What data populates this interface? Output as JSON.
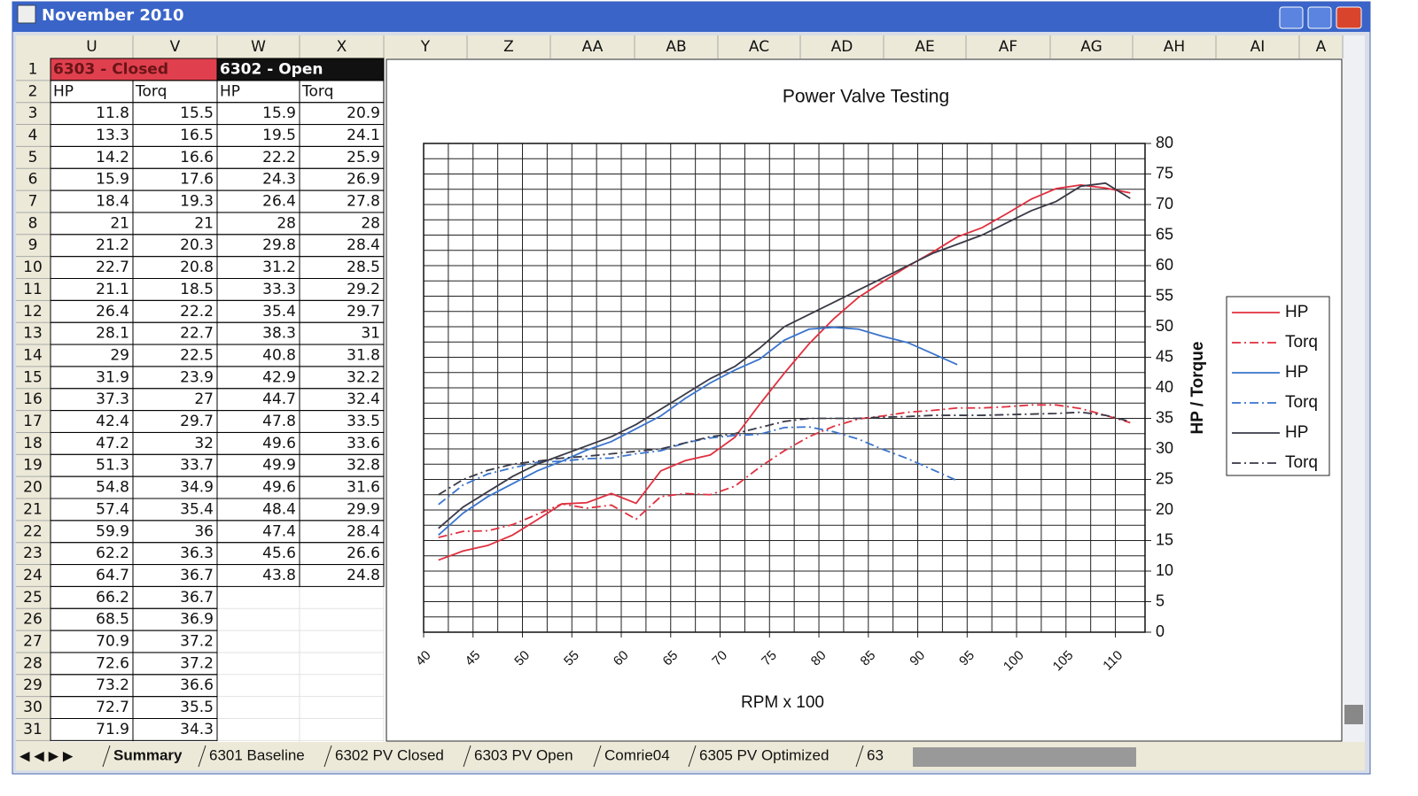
{
  "window_title": "November 2010",
  "columns": [
    "U",
    "V",
    "W",
    "X",
    "Y",
    "Z",
    "AA",
    "AB",
    "AC",
    "AD",
    "AE",
    "AF",
    "AG",
    "AH",
    "AI",
    "A"
  ],
  "row_numbers": [
    1,
    2,
    3,
    4,
    5,
    6,
    7,
    8,
    9,
    10,
    11,
    12,
    13,
    14,
    15,
    16,
    17,
    18,
    19,
    20,
    21,
    22,
    23,
    24,
    25,
    26,
    27,
    28,
    29,
    30,
    31
  ],
  "table": {
    "group_headers": [
      "6303 - Closed",
      "6302 - Open"
    ],
    "headers": [
      "HP",
      "Torq",
      "HP",
      "Torq"
    ],
    "rows": [
      [
        11.8,
        15.5,
        15.9,
        20.9
      ],
      [
        13.3,
        16.5,
        19.5,
        24.1
      ],
      [
        14.2,
        16.6,
        22.2,
        25.9
      ],
      [
        15.9,
        17.6,
        24.3,
        26.9
      ],
      [
        18.4,
        19.3,
        26.4,
        27.8
      ],
      [
        21,
        21,
        28,
        28
      ],
      [
        21.2,
        20.3,
        29.8,
        28.4
      ],
      [
        22.7,
        20.8,
        31.2,
        28.5
      ],
      [
        21.1,
        18.5,
        33.3,
        29.2
      ],
      [
        26.4,
        22.2,
        35.4,
        29.7
      ],
      [
        28.1,
        22.7,
        38.3,
        31
      ],
      [
        29,
        22.5,
        40.8,
        31.8
      ],
      [
        31.9,
        23.9,
        42.9,
        32.2
      ],
      [
        37.3,
        27,
        44.7,
        32.4
      ],
      [
        42.4,
        29.7,
        47.8,
        33.5
      ],
      [
        47.2,
        32,
        49.6,
        33.6
      ],
      [
        51.3,
        33.7,
        49.9,
        32.8
      ],
      [
        54.8,
        34.9,
        49.6,
        31.6
      ],
      [
        57.4,
        35.4,
        48.4,
        29.9
      ],
      [
        59.9,
        36,
        47.4,
        28.4
      ],
      [
        62.2,
        36.3,
        45.6,
        26.6
      ],
      [
        64.7,
        36.7,
        43.8,
        24.8
      ],
      [
        66.2,
        36.7
      ],
      [
        68.5,
        36.9
      ],
      [
        70.9,
        37.2
      ],
      [
        72.6,
        37.2
      ],
      [
        73.2,
        36.6
      ],
      [
        72.7,
        35.5
      ],
      [
        71.9,
        34.3
      ]
    ]
  },
  "chart_data": {
    "type": "line",
    "title": "Power Valve Testing",
    "x_label": "RPM x 100",
    "y_label": "HP / Torque",
    "y_axis_side": "right",
    "legend": "right",
    "grid": true,
    "xlim": [
      40,
      113
    ],
    "xticks": [
      40,
      45,
      50,
      55,
      60,
      65,
      70,
      75,
      80,
      85,
      90,
      95,
      100,
      105,
      110
    ],
    "ylim": [
      0,
      80
    ],
    "yticks": [
      0,
      5,
      10,
      15,
      20,
      25,
      30,
      35,
      40,
      45,
      50,
      55,
      60,
      65,
      70,
      75,
      80
    ],
    "x": [
      41.5,
      44,
      46.5,
      49,
      51.5,
      54,
      56.5,
      59,
      61.5,
      64,
      66.5,
      69,
      71.5,
      74,
      76.5,
      79,
      81.5,
      84,
      86.5,
      89,
      91.5,
      94,
      96.5,
      99,
      101.5,
      104,
      106.5,
      109,
      111.5
    ],
    "series": [
      {
        "name": "HP",
        "color": "#e0303f",
        "line_style": "solid",
        "values": [
          11.8,
          13.3,
          14.2,
          15.9,
          18.4,
          21,
          21.2,
          22.7,
          21.1,
          26.4,
          28.1,
          29,
          31.9,
          37.3,
          42.4,
          47.2,
          51.3,
          54.8,
          57.4,
          59.9,
          62.2,
          64.7,
          66.2,
          68.5,
          70.9,
          72.6,
          73.2,
          72.7,
          71.9
        ]
      },
      {
        "name": "Torq",
        "color": "#e0303f",
        "line_style": "dash-dot",
        "values": [
          15.5,
          16.5,
          16.6,
          17.6,
          19.3,
          21,
          20.3,
          20.8,
          18.5,
          22.2,
          22.7,
          22.5,
          23.9,
          27,
          29.7,
          32,
          33.7,
          34.9,
          35.4,
          36,
          36.3,
          36.7,
          36.7,
          36.9,
          37.2,
          37.2,
          36.6,
          35.5,
          34.3
        ]
      },
      {
        "name": "HP",
        "color": "#3a74cc",
        "line_style": "solid",
        "values": [
          15.9,
          19.5,
          22.2,
          24.3,
          26.4,
          28,
          29.8,
          31.2,
          33.3,
          35.4,
          38.3,
          40.8,
          42.9,
          44.7,
          47.8,
          49.6,
          49.9,
          49.6,
          48.4,
          47.4,
          45.6,
          43.8,
          null,
          null,
          null,
          null,
          null,
          null,
          null
        ]
      },
      {
        "name": "Torq",
        "color": "#3a74cc",
        "line_style": "dash-dot",
        "values": [
          20.9,
          24.1,
          25.9,
          26.9,
          27.8,
          28,
          28.4,
          28.5,
          29.2,
          29.7,
          31,
          31.8,
          32.2,
          32.4,
          33.5,
          33.6,
          32.8,
          31.6,
          29.9,
          28.4,
          26.6,
          24.8,
          null,
          null,
          null,
          null,
          null,
          null,
          null
        ]
      },
      {
        "name": "HP",
        "color": "#3a3a48",
        "line_style": "solid",
        "values": [
          17,
          20.5,
          23,
          25.5,
          27.5,
          29,
          30.5,
          32,
          34,
          36.5,
          39,
          41.5,
          43.5,
          46.5,
          50,
          52,
          54,
          56,
          58,
          60,
          62,
          63.5,
          65,
          67,
          69,
          70.5,
          73,
          73.5,
          71
        ]
      },
      {
        "name": "Torq",
        "color": "#3a3a48",
        "line_style": "dash-dot",
        "values": [
          22.5,
          25,
          26.5,
          27.5,
          28,
          28.5,
          28.8,
          29.2,
          29.6,
          30,
          31,
          32,
          32.5,
          33.5,
          34.5,
          35,
          35,
          35,
          35.2,
          35.3,
          35.5,
          35.5,
          35.5,
          35.6,
          35.7,
          35.8,
          36,
          35.5,
          34.5
        ]
      }
    ]
  },
  "sheet_tabs": [
    "Summary",
    "6301 Baseline",
    "6302 PV Closed",
    "6303 PV Open",
    "Comrie04",
    "6305 PV Optimized",
    "63"
  ]
}
